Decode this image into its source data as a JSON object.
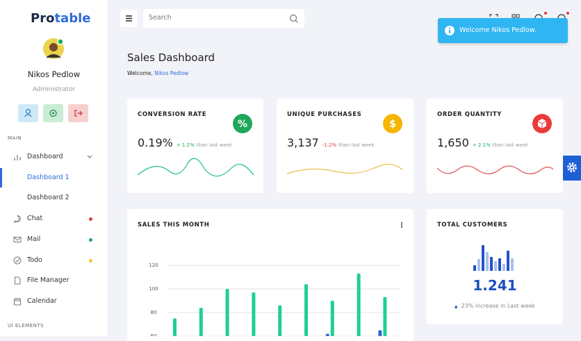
{
  "sidebar": {
    "logo": {
      "part1": "Pro",
      "part2": "table"
    },
    "user": {
      "name": "Nikos Pedlow",
      "role": "Administrator"
    },
    "section_main": "MAIN",
    "menu": [
      {
        "label": "Dashboard"
      },
      {
        "label": "Dashboard 1"
      },
      {
        "label": "Dashboard 2"
      },
      {
        "label": "Chat"
      },
      {
        "label": "Mail"
      },
      {
        "label": "Todo"
      },
      {
        "label": "File Manager"
      },
      {
        "label": "Calendar"
      }
    ],
    "section_ui": "UI ELEMENTS"
  },
  "topbar": {
    "search_placeholder": "Search"
  },
  "toast": "Welcome Nikos Pedlow.",
  "page": {
    "title": "Sales Dashboard",
    "welcome": "Welcome,",
    "welcome_name": "Nikos Pedlow"
  },
  "stats": [
    {
      "title": "CONVERSION RATE",
      "value": "0.19%",
      "change": "+ 1.2%",
      "note": "than last week"
    },
    {
      "title": "UNIQUE PURCHASES",
      "value": "3,137",
      "change": "-1.2%",
      "note": "than last week"
    },
    {
      "title": "ORDER QUANTITY",
      "value": "1,650",
      "change": "+ 2.1%",
      "note": "than last week"
    }
  ],
  "chart_data": {
    "type": "bar",
    "title": "SALES THIS MONTH",
    "series": [
      {
        "color": "#2f6bd8",
        "values": [
          null,
          null,
          null,
          null,
          null,
          null,
          62,
          null,
          65
        ]
      },
      {
        "color": "#1fd08f",
        "values": [
          75,
          84,
          100,
          97,
          86,
          104,
          90,
          113,
          93
        ]
      }
    ],
    "ylim": [
      60,
      130
    ],
    "yticks": [
      60,
      80,
      100,
      120
    ],
    "grid": true
  },
  "total_customers": {
    "title": "TOTAL CUSTOMERS",
    "value": "1.241",
    "note": "23% increase in Last week"
  }
}
